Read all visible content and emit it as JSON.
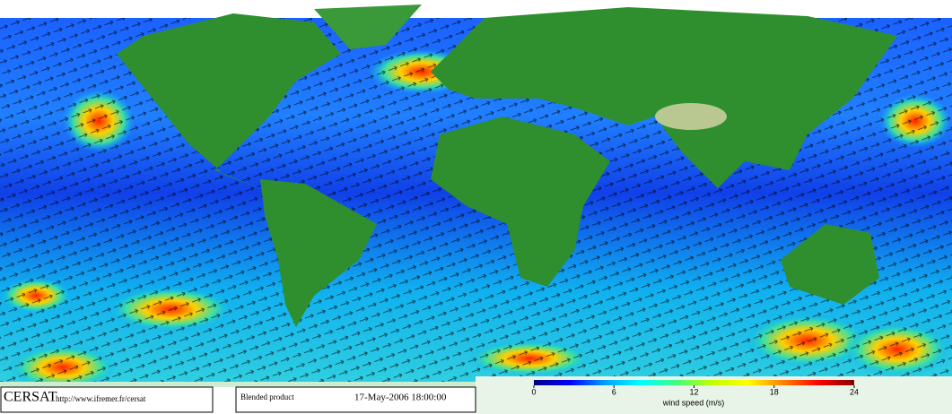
{
  "footer": {
    "logo": "CERSAT",
    "url": "http://www.ifremer.fr/cersat",
    "product": "Blended product",
    "timestamp": "17-May-2006 18:00:00"
  },
  "colorbar": {
    "label": "wind speed (m/s)",
    "range": [
      0,
      24
    ],
    "ticks": [
      0,
      6,
      12,
      18,
      24
    ],
    "colors": [
      "#000080",
      "#0000ff",
      "#00a0ff",
      "#00ffff",
      "#40ff80",
      "#c0ff00",
      "#ffff00",
      "#ff8000",
      "#ff0000",
      "#800000"
    ]
  }
}
